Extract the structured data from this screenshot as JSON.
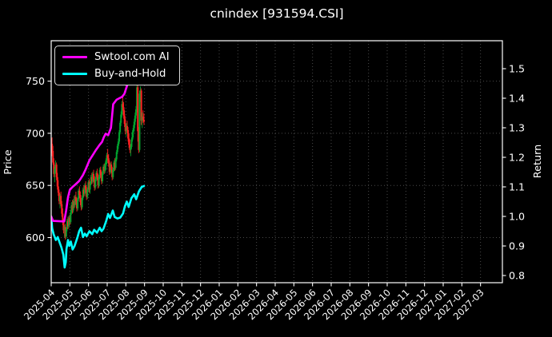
{
  "figure": {
    "title": "cnindex [931594.CSI]"
  },
  "chart_data": {
    "type": "candlestick+line",
    "title": "cnindex [931594.CSI]",
    "background": "#000000",
    "grid": true,
    "grid_color": "#4a4a4a",
    "spine_color": "#ffffff",
    "legend_position": "upper left",
    "left_axis": {
      "label": "Price",
      "ticks": [
        600,
        650,
        700,
        750
      ],
      "range": [
        556,
        788
      ]
    },
    "right_axis": {
      "label": "Return",
      "ticks": [
        0.8,
        0.9,
        1.0,
        1.1,
        1.2,
        1.3,
        1.4,
        1.5
      ],
      "range": [
        0.776,
        1.595
      ]
    },
    "x_axis": {
      "rotation": 45,
      "tick_labels": [
        "2025-04",
        "2025-05",
        "2025-06",
        "2025-07",
        "2025-08",
        "2025-09",
        "2025-10",
        "2025-11",
        "2025-12",
        "2026-01",
        "2026-02",
        "2026-03",
        "2026-04",
        "2026-05",
        "2026-06",
        "2026-07",
        "2026-08",
        "2026-09",
        "2026-10",
        "2026-11",
        "2026-12",
        "2027-01",
        "2027-02",
        "2027-03"
      ]
    },
    "series": [
      {
        "name": "Swtool.com AI",
        "color": "#ff00ff",
        "axis": "right",
        "x": [
          0,
          0.1,
          0.7,
          0.8,
          0.9,
          1.0,
          1.15,
          1.3,
          1.5,
          1.7,
          1.85,
          2.05,
          2.25,
          2.4,
          2.6,
          2.72,
          2.82,
          2.92,
          3.05,
          3.2,
          3.32,
          3.5,
          3.65,
          3.8,
          3.92,
          4.05,
          4.2,
          4.32,
          4.45,
          4.6,
          4.8,
          4.97
        ],
        "y": [
          1.0,
          0.985,
          0.983,
          1.02,
          1.065,
          1.09,
          1.1,
          1.108,
          1.12,
          1.14,
          1.16,
          1.19,
          1.21,
          1.225,
          1.243,
          1.252,
          1.268,
          1.28,
          1.275,
          1.3,
          1.38,
          1.395,
          1.4,
          1.405,
          1.415,
          1.44,
          1.47,
          1.495,
          1.51,
          1.53,
          1.545,
          1.55
        ]
      },
      {
        "name": "Buy-and-Hold",
        "color": "#00ffff",
        "axis": "right",
        "x": [
          0,
          0.05,
          0.13,
          0.25,
          0.35,
          0.45,
          0.55,
          0.65,
          0.72,
          0.78,
          0.82,
          0.9,
          0.97,
          1.05,
          1.15,
          1.25,
          1.4,
          1.5,
          1.6,
          1.7,
          1.8,
          1.9,
          2.05,
          2.2,
          2.3,
          2.45,
          2.6,
          2.7,
          2.8,
          2.95,
          3.05,
          3.15,
          3.3,
          3.4,
          3.55,
          3.7,
          3.85,
          3.95,
          4.05,
          4.15,
          4.3,
          4.45,
          4.55,
          4.7,
          4.85,
          4.97
        ],
        "y": [
          1.0,
          0.96,
          0.94,
          0.92,
          0.93,
          0.912,
          0.895,
          0.87,
          0.827,
          0.845,
          0.89,
          0.92,
          0.9,
          0.915,
          0.888,
          0.9,
          0.928,
          0.95,
          0.962,
          0.93,
          0.942,
          0.933,
          0.95,
          0.94,
          0.955,
          0.945,
          0.962,
          0.95,
          0.958,
          0.985,
          1.008,
          0.995,
          1.02,
          0.998,
          0.993,
          0.996,
          1.01,
          1.035,
          1.05,
          1.032,
          1.062,
          1.075,
          1.058,
          1.085,
          1.1,
          1.103
        ]
      }
    ],
    "candles": {
      "axis": "left",
      "up_color": "#00a42e",
      "down_color": "#ff2121",
      "x_start_month": 0,
      "x_step_month": 0.04733,
      "ohlc": [
        [
          695,
          713,
          686,
          690
        ],
        [
          690,
          696,
          678,
          681
        ],
        [
          683,
          688,
          670,
          672
        ],
        [
          672,
          676,
          658,
          661
        ],
        [
          661,
          668,
          653,
          666
        ],
        [
          666,
          674,
          662,
          670
        ],
        [
          670,
          672,
          655,
          658
        ],
        [
          658,
          662,
          646,
          649
        ],
        [
          649,
          655,
          640,
          643
        ],
        [
          643,
          646,
          632,
          635
        ],
        [
          635,
          642,
          628,
          640
        ],
        [
          640,
          644,
          630,
          632
        ],
        [
          632,
          635,
          620,
          623
        ],
        [
          623,
          628,
          612,
          615
        ],
        [
          615,
          618,
          604,
          607
        ],
        [
          607,
          612,
          600,
          610
        ],
        [
          610,
          613,
          598,
          601
        ],
        [
          601,
          610,
          599,
          608
        ],
        [
          608,
          618,
          606,
          616
        ],
        [
          616,
          620,
          608,
          611
        ],
        [
          611,
          621,
          609,
          619
        ],
        [
          619,
          622,
          612,
          615
        ],
        [
          615,
          626,
          613,
          624
        ],
        [
          624,
          634,
          622,
          631
        ],
        [
          631,
          636,
          623,
          626
        ],
        [
          626,
          637,
          624,
          635
        ],
        [
          635,
          640,
          628,
          631
        ],
        [
          631,
          641,
          629,
          639
        ],
        [
          639,
          644,
          632,
          635
        ],
        [
          635,
          638,
          625,
          628
        ],
        [
          628,
          639,
          626,
          637
        ],
        [
          637,
          647,
          635,
          645
        ],
        [
          645,
          649,
          638,
          641
        ],
        [
          641,
          644,
          631,
          634
        ],
        [
          634,
          638,
          626,
          629
        ],
        [
          629,
          640,
          627,
          638
        ],
        [
          638,
          648,
          636,
          646
        ],
        [
          646,
          650,
          639,
          642
        ],
        [
          642,
          652,
          640,
          650
        ],
        [
          650,
          654,
          643,
          646
        ],
        [
          646,
          649,
          636,
          639
        ],
        [
          639,
          648,
          637,
          646
        ],
        [
          646,
          655,
          644,
          653
        ],
        [
          653,
          656,
          643,
          646
        ],
        [
          646,
          654,
          642,
          652
        ],
        [
          652,
          660,
          650,
          658
        ],
        [
          658,
          662,
          651,
          654
        ],
        [
          654,
          663,
          652,
          661
        ],
        [
          661,
          665,
          653,
          656
        ],
        [
          656,
          659,
          645,
          648
        ],
        [
          648,
          658,
          646,
          656
        ],
        [
          656,
          664,
          654,
          662
        ],
        [
          662,
          666,
          655,
          658
        ],
        [
          658,
          661,
          647,
          650
        ],
        [
          650,
          660,
          648,
          658
        ],
        [
          658,
          667,
          656,
          665
        ],
        [
          665,
          668,
          657,
          660
        ],
        [
          660,
          663,
          651,
          654
        ],
        [
          654,
          664,
          652,
          662
        ],
        [
          662,
          670,
          660,
          668
        ],
        [
          668,
          671,
          661,
          664
        ],
        [
          664,
          672,
          662,
          670
        ],
        [
          670,
          676,
          665,
          674
        ],
        [
          674,
          681,
          670,
          679
        ],
        [
          679,
          685,
          672,
          676
        ],
        [
          676,
          680,
          668,
          671
        ],
        [
          671,
          674,
          660,
          663
        ],
        [
          663,
          672,
          661,
          670
        ],
        [
          670,
          673,
          662,
          665
        ],
        [
          665,
          668,
          655,
          658
        ],
        [
          658,
          667,
          656,
          665
        ],
        [
          665,
          674,
          663,
          672
        ],
        [
          672,
          676,
          664,
          667
        ],
        [
          667,
          677,
          665,
          675
        ],
        [
          675,
          684,
          673,
          682
        ],
        [
          682,
          690,
          680,
          688
        ],
        [
          688,
          695,
          685,
          692
        ],
        [
          692,
          703,
          690,
          701
        ],
        [
          701,
          712,
          699,
          710
        ],
        [
          710,
          721,
          707,
          718
        ],
        [
          718,
          731,
          715,
          728
        ],
        [
          728,
          736,
          722,
          725
        ],
        [
          725,
          730,
          714,
          717
        ],
        [
          717,
          722,
          706,
          709
        ],
        [
          709,
          714,
          699,
          702
        ],
        [
          702,
          710,
          697,
          707
        ],
        [
          707,
          712,
          700,
          703
        ],
        [
          703,
          706,
          692,
          695
        ],
        [
          695,
          700,
          686,
          689
        ],
        [
          689,
          694,
          681,
          684
        ],
        [
          684,
          690,
          678,
          687
        ],
        [
          687,
          696,
          685,
          694
        ],
        [
          694,
          703,
          692,
          701
        ],
        [
          701,
          708,
          696,
          705
        ],
        [
          705,
          714,
          702,
          711
        ],
        [
          711,
          720,
          708,
          717
        ],
        [
          717,
          726,
          714,
          723
        ],
        [
          723,
          748,
          720,
          744
        ],
        [
          744,
          749,
          692,
          702
        ],
        [
          702,
          706,
          681,
          684
        ],
        [
          684,
          741,
          682,
          738
        ],
        [
          738,
          745,
          730,
          741
        ],
        [
          741,
          743,
          708,
          712
        ],
        [
          712,
          720,
          705,
          716
        ],
        [
          716,
          722,
          710,
          713
        ],
        [
          713,
          719,
          708,
          711
        ]
      ]
    }
  }
}
